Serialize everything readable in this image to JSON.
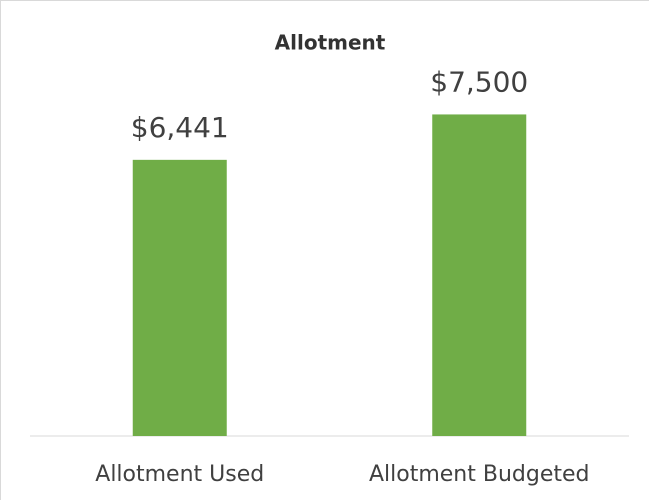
{
  "chart_data": {
    "type": "bar",
    "title": "Allotment",
    "categories": [
      "Allotment Used",
      "Allotment Budgeted"
    ],
    "values": [
      6441,
      7500
    ],
    "value_labels": [
      "$6,441",
      "$7,500"
    ],
    "color": "#70ad47",
    "ylim": [
      0,
      8000
    ]
  }
}
